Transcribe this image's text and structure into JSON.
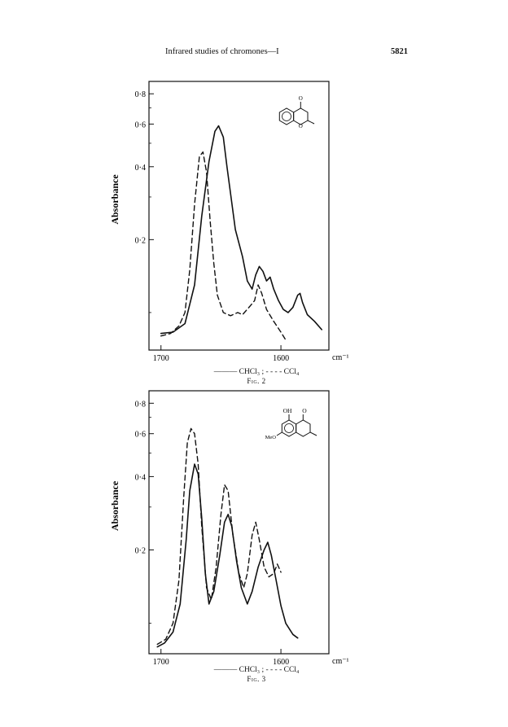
{
  "header": {
    "running_title": "Infrared studies of chromones—I",
    "page_number": "5821"
  },
  "chart_data": [
    {
      "type": "line",
      "figure_label": "Fig. 2",
      "ylabel": "Absorbance",
      "x_unit": "cm⁻¹",
      "x_ticks": [
        1700,
        1600
      ],
      "x_tick_labels": [
        "1700",
        "1600"
      ],
      "y_ticks": [
        0.2,
        0.4,
        0.6,
        0.8
      ],
      "y_tick_labels": [
        "0·2",
        "0·4",
        "0·6",
        "0·8"
      ],
      "xlim": [
        1710,
        1560
      ],
      "ylim": [
        0.07,
        0.9
      ],
      "y_scale": "log",
      "legend_line": "——— CHCl₃ ; - - - - CCl₄",
      "molecule_text": [
        "O",
        "O"
      ],
      "series": [
        {
          "name": "CHCl₃",
          "style": "solid",
          "points": [
            [
              1700,
              0.082
            ],
            [
              1690,
              0.083
            ],
            [
              1680,
              0.09
            ],
            [
              1672,
              0.13
            ],
            [
              1666,
              0.25
            ],
            [
              1660,
              0.42
            ],
            [
              1655,
              0.56
            ],
            [
              1652,
              0.59
            ],
            [
              1648,
              0.53
            ],
            [
              1645,
              0.4
            ],
            [
              1642,
              0.31
            ],
            [
              1638,
              0.22
            ],
            [
              1632,
              0.17
            ],
            [
              1628,
              0.135
            ],
            [
              1624,
              0.125
            ],
            [
              1621,
              0.143
            ],
            [
              1618,
              0.155
            ],
            [
              1615,
              0.148
            ],
            [
              1612,
              0.135
            ],
            [
              1609,
              0.14
            ],
            [
              1606,
              0.125
            ],
            [
              1602,
              0.112
            ],
            [
              1598,
              0.103
            ],
            [
              1594,
              0.1
            ],
            [
              1590,
              0.105
            ],
            [
              1586,
              0.118
            ],
            [
              1584,
              0.12
            ],
            [
              1582,
              0.11
            ],
            [
              1578,
              0.098
            ],
            [
              1572,
              0.092
            ],
            [
              1566,
              0.085
            ]
          ]
        },
        {
          "name": "CCl₄",
          "style": "dashed",
          "points": [
            [
              1700,
              0.08
            ],
            [
              1692,
              0.082
            ],
            [
              1685,
              0.088
            ],
            [
              1680,
              0.1
            ],
            [
              1676,
              0.15
            ],
            [
              1672,
              0.28
            ],
            [
              1668,
              0.44
            ],
            [
              1665,
              0.46
            ],
            [
              1662,
              0.38
            ],
            [
              1659,
              0.24
            ],
            [
              1656,
              0.16
            ],
            [
              1653,
              0.118
            ],
            [
              1648,
              0.1
            ],
            [
              1642,
              0.097
            ],
            [
              1636,
              0.1
            ],
            [
              1632,
              0.098
            ],
            [
              1626,
              0.106
            ],
            [
              1622,
              0.112
            ],
            [
              1619,
              0.13
            ],
            [
              1616,
              0.12
            ],
            [
              1612,
              0.103
            ],
            [
              1606,
              0.092
            ],
            [
              1600,
              0.083
            ],
            [
              1596,
              0.077
            ]
          ]
        }
      ]
    },
    {
      "type": "line",
      "figure_label": "Fig. 3",
      "ylabel": "Absorbance",
      "x_unit": "cm⁻¹",
      "x_ticks": [
        1700,
        1600
      ],
      "x_tick_labels": [
        "1700",
        "1600"
      ],
      "y_ticks": [
        0.2,
        0.4,
        0.6,
        0.8
      ],
      "y_tick_labels": [
        "0·2",
        "0·4",
        "0·6",
        "0·8"
      ],
      "xlim": [
        1710,
        1560
      ],
      "ylim": [
        0.075,
        0.9
      ],
      "y_scale": "log",
      "legend_line": "——— CHCl₃ ; - - - - CCl₄",
      "molecule_text": [
        "OH",
        "O",
        "MeO"
      ],
      "series": [
        {
          "name": "CHCl₃",
          "style": "solid",
          "points": [
            [
              1703,
              0.08
            ],
            [
              1697,
              0.083
            ],
            [
              1690,
              0.092
            ],
            [
              1684,
              0.12
            ],
            [
              1679,
              0.22
            ],
            [
              1676,
              0.35
            ],
            [
              1672,
              0.45
            ],
            [
              1669,
              0.41
            ],
            [
              1666,
              0.27
            ],
            [
              1663,
              0.16
            ],
            [
              1660,
              0.12
            ],
            [
              1656,
              0.135
            ],
            [
              1651,
              0.19
            ],
            [
              1647,
              0.26
            ],
            [
              1644,
              0.28
            ],
            [
              1641,
              0.25
            ],
            [
              1637,
              0.18
            ],
            [
              1633,
              0.14
            ],
            [
              1628,
              0.12
            ],
            [
              1624,
              0.135
            ],
            [
              1619,
              0.17
            ],
            [
              1614,
              0.2
            ],
            [
              1611,
              0.215
            ],
            [
              1608,
              0.19
            ],
            [
              1604,
              0.15
            ],
            [
              1600,
              0.118
            ],
            [
              1596,
              0.1
            ],
            [
              1590,
              0.09
            ],
            [
              1586,
              0.087
            ]
          ]
        },
        {
          "name": "CCl₄",
          "style": "dashed",
          "points": [
            [
              1703,
              0.082
            ],
            [
              1696,
              0.086
            ],
            [
              1690,
              0.1
            ],
            [
              1685,
              0.15
            ],
            [
              1681,
              0.33
            ],
            [
              1678,
              0.55
            ],
            [
              1675,
              0.63
            ],
            [
              1672,
              0.6
            ],
            [
              1669,
              0.45
            ],
            [
              1666,
              0.25
            ],
            [
              1662,
              0.14
            ],
            [
              1658,
              0.125
            ],
            [
              1654,
              0.17
            ],
            [
              1650,
              0.28
            ],
            [
              1647,
              0.37
            ],
            [
              1644,
              0.35
            ],
            [
              1640,
              0.23
            ],
            [
              1635,
              0.16
            ],
            [
              1631,
              0.14
            ],
            [
              1628,
              0.16
            ],
            [
              1624,
              0.23
            ],
            [
              1621,
              0.26
            ],
            [
              1618,
              0.22
            ],
            [
              1614,
              0.17
            ],
            [
              1610,
              0.155
            ],
            [
              1606,
              0.16
            ],
            [
              1603,
              0.175
            ],
            [
              1600,
              0.162
            ]
          ]
        }
      ]
    }
  ]
}
